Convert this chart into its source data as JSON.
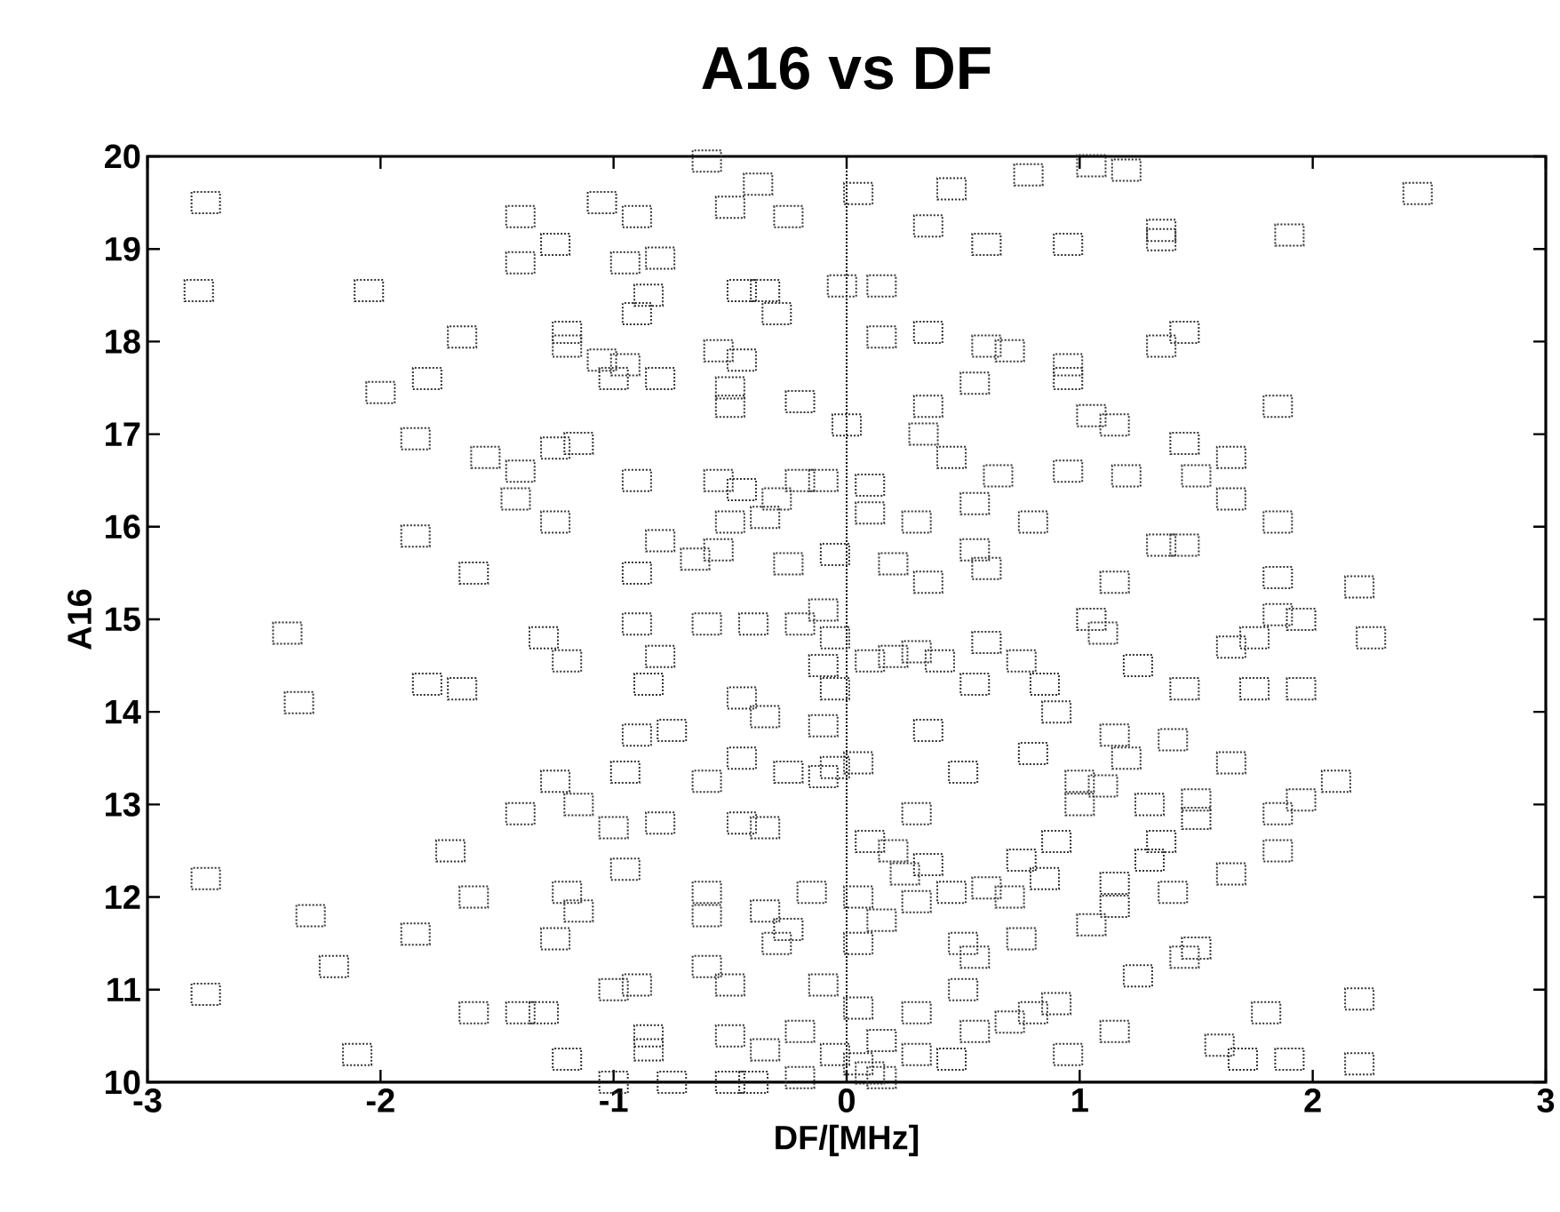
{
  "chart_data": {
    "type": "scatter",
    "title": "A16 vs DF",
    "xlabel": "DF/[MHz]",
    "ylabel": "A16",
    "xlim": [
      -3,
      3
    ],
    "ylim": [
      10,
      20
    ],
    "xticks": [
      -3,
      -2,
      -1,
      0,
      1,
      2,
      3
    ],
    "yticks": [
      10,
      11,
      12,
      13,
      14,
      15,
      16,
      17,
      18,
      19,
      20
    ],
    "grid": false,
    "marker": "square",
    "ref_lines": [
      {
        "axis": "x",
        "value": 0,
        "line_style": "dotted"
      }
    ],
    "series": [
      {
        "color": "#333333",
        "x": [
          -2.75,
          -2.78,
          -2.05,
          -1.4,
          -1.4,
          -1.25,
          -1.05,
          -0.9,
          -0.95,
          -0.8,
          -0.6,
          -0.5,
          -0.38,
          -0.25,
          0.05,
          0.35,
          0.45,
          0.6,
          0.78,
          0.95,
          1.05,
          1.2,
          1.35,
          1.35,
          1.9,
          2.45,
          -0.45,
          -0.35,
          -0.3,
          -0.02,
          0.15,
          -0.85,
          -0.9,
          -1.2,
          -1.2,
          -1.65,
          -1.8,
          -2.0,
          -1.05,
          -0.95,
          -0.8,
          -1.0,
          -0.55,
          -0.45,
          -0.5,
          -0.5,
          -0.2,
          0.15,
          0.35,
          0.6,
          0.7,
          0.55,
          0.35,
          0.33,
          0.0,
          0.95,
          0.95,
          1.05,
          1.15,
          1.35,
          1.45,
          1.85,
          -1.85,
          -1.55,
          -1.25,
          -1.15,
          -1.4,
          -1.42,
          -1.25,
          -0.9,
          -0.55,
          -0.45,
          -0.3,
          -0.35,
          -0.5,
          -0.2,
          -0.1,
          0.1,
          0.1,
          0.45,
          0.65,
          0.55,
          0.95,
          1.2,
          1.5,
          1.65,
          1.65,
          1.45,
          0.3,
          0.8,
          -1.85,
          -1.6,
          -0.55,
          -0.65,
          -0.8,
          -0.9,
          -0.25,
          -0.05,
          0.2,
          0.55,
          0.6,
          1.35,
          1.45,
          1.85,
          1.85,
          2.2,
          1.85,
          1.95,
          2.25,
          0.35,
          1.15,
          -2.4,
          -2.35,
          -1.8,
          -1.65,
          -1.3,
          -1.2,
          -0.9,
          -0.85,
          -0.8,
          -0.6,
          -0.4,
          -0.2,
          -0.1,
          -0.05,
          -0.1,
          -0.05,
          0.1,
          0.2,
          0.3,
          0.4,
          0.6,
          0.55,
          0.75,
          0.85,
          0.9,
          1.05,
          1.1,
          1.25,
          1.45,
          1.4,
          1.65,
          1.75,
          1.75,
          1.95,
          -0.45,
          -0.35,
          -0.1,
          -0.9,
          -0.75,
          -0.95,
          -0.6,
          -0.45,
          -0.25,
          0.35,
          0.5,
          0.8,
          1.15,
          1.2,
          -1.25,
          -1.4,
          -1.15,
          -1.0,
          -0.8,
          -0.45,
          -0.35,
          -0.1,
          -0.05,
          0.05,
          0.1,
          0.2,
          0.3,
          0.35,
          0.25,
          0.45,
          0.6,
          0.7,
          0.75,
          0.85,
          0.9,
          1.0,
          1.0,
          1.1,
          1.3,
          1.35,
          1.3,
          1.5,
          1.5,
          1.65,
          1.85,
          2.1,
          1.95,
          1.85,
          1.65,
          1.4,
          1.15,
          -1.7,
          -1.6,
          -2.75,
          -2.3,
          -1.85,
          -1.2,
          -1.15,
          -1.25,
          -0.95,
          -0.6,
          -0.6,
          -0.35,
          -0.15,
          -0.25,
          -0.3,
          0.05,
          0.05,
          0.15,
          0.3,
          0.5,
          0.55,
          0.75,
          1.05,
          1.15,
          1.25,
          1.45,
          1.5,
          -2.75,
          -2.2,
          -1.4,
          -1.3,
          -1.6,
          -1.0,
          -0.9,
          -0.6,
          -0.5,
          -0.1,
          0.05,
          0.3,
          0.5,
          0.55,
          0.8,
          0.9,
          0.7,
          1.15,
          1.8,
          2.2,
          -2.1,
          -1.2,
          -0.85,
          -0.85,
          -0.5,
          -0.35,
          -0.2,
          -0.05,
          0.05,
          0.15,
          0.3,
          0.45,
          0.95,
          1.6,
          1.7,
          1.9,
          2.2,
          -1.0,
          -0.75,
          -0.4,
          -0.2,
          0.1,
          0.15,
          -0.5
        ],
        "values": [
          19.5,
          18.55,
          18.55,
          19.35,
          18.85,
          19.05,
          19.5,
          19.35,
          18.85,
          18.9,
          19.95,
          19.45,
          19.7,
          19.35,
          19.6,
          19.25,
          19.65,
          19.05,
          19.8,
          19.05,
          19.9,
          19.85,
          19.1,
          19.2,
          19.15,
          19.6,
          18.55,
          18.55,
          18.3,
          18.6,
          18.6,
          18.5,
          18.3,
          18.1,
          17.95,
          18.05,
          17.6,
          17.45,
          17.8,
          17.75,
          17.6,
          17.6,
          17.9,
          17.8,
          17.5,
          17.3,
          17.35,
          18.05,
          18.1,
          17.95,
          17.9,
          17.55,
          17.3,
          17.0,
          17.1,
          17.75,
          17.6,
          17.2,
          17.1,
          17.95,
          18.1,
          17.3,
          16.95,
          16.75,
          16.85,
          16.9,
          16.6,
          16.3,
          16.05,
          16.5,
          16.5,
          16.4,
          16.3,
          16.1,
          16.05,
          16.5,
          16.5,
          16.45,
          16.15,
          16.75,
          16.55,
          16.25,
          16.6,
          16.55,
          16.55,
          16.75,
          16.3,
          16.9,
          16.05,
          16.05,
          15.9,
          15.5,
          15.75,
          15.65,
          15.85,
          15.5,
          15.6,
          15.7,
          15.6,
          15.75,
          15.55,
          15.8,
          15.8,
          16.05,
          15.45,
          15.35,
          15.05,
          15.0,
          14.8,
          15.4,
          15.4,
          14.85,
          14.1,
          14.3,
          14.25,
          14.8,
          14.55,
          14.95,
          14.3,
          14.6,
          14.95,
          14.95,
          14.95,
          15.1,
          14.8,
          14.5,
          14.25,
          14.55,
          14.6,
          14.65,
          14.55,
          14.75,
          14.3,
          14.55,
          14.3,
          14.0,
          15.0,
          14.85,
          14.5,
          14.25,
          13.7,
          14.7,
          14.8,
          14.25,
          14.25,
          14.15,
          13.95,
          13.85,
          13.75,
          13.8,
          13.35,
          13.25,
          13.5,
          13.35,
          13.8,
          13.35,
          13.55,
          13.75,
          13.5,
          13.25,
          12.9,
          13.0,
          12.75,
          12.8,
          12.8,
          12.75,
          13.3,
          13.4,
          13.45,
          12.6,
          12.5,
          12.9,
          12.35,
          12.25,
          12.05,
          12.1,
          12.0,
          12.4,
          12.2,
          12.6,
          13.0,
          13.25,
          13.2,
          13.0,
          12.6,
          12.4,
          13.05,
          12.85,
          13.45,
          12.9,
          13.25,
          13.05,
          12.5,
          12.25,
          12.05,
          12.15,
          12.5,
          12.0,
          12.2,
          11.8,
          11.6,
          12.05,
          11.85,
          11.55,
          12.3,
          12.05,
          11.8,
          11.85,
          12.05,
          11.65,
          11.5,
          12.0,
          11.5,
          11.75,
          11.95,
          11.5,
          11.35,
          11.55,
          11.7,
          11.9,
          11.15,
          11.35,
          11.45,
          10.95,
          11.25,
          10.75,
          10.75,
          10.75,
          11.0,
          11.05,
          11.25,
          11.05,
          11.05,
          10.8,
          10.75,
          11.0,
          10.55,
          10.75,
          10.85,
          10.65,
          10.55,
          10.75,
          10.9,
          10.3,
          10.25,
          10.5,
          10.35,
          10.5,
          10.35,
          10.55,
          10.3,
          10.2,
          10.45,
          10.3,
          10.25,
          10.3,
          10.4,
          10.25,
          10.25,
          10.2,
          10.0,
          10.0,
          10.0,
          10.05,
          10.1,
          10.05,
          10.0
        ]
      }
    ]
  }
}
